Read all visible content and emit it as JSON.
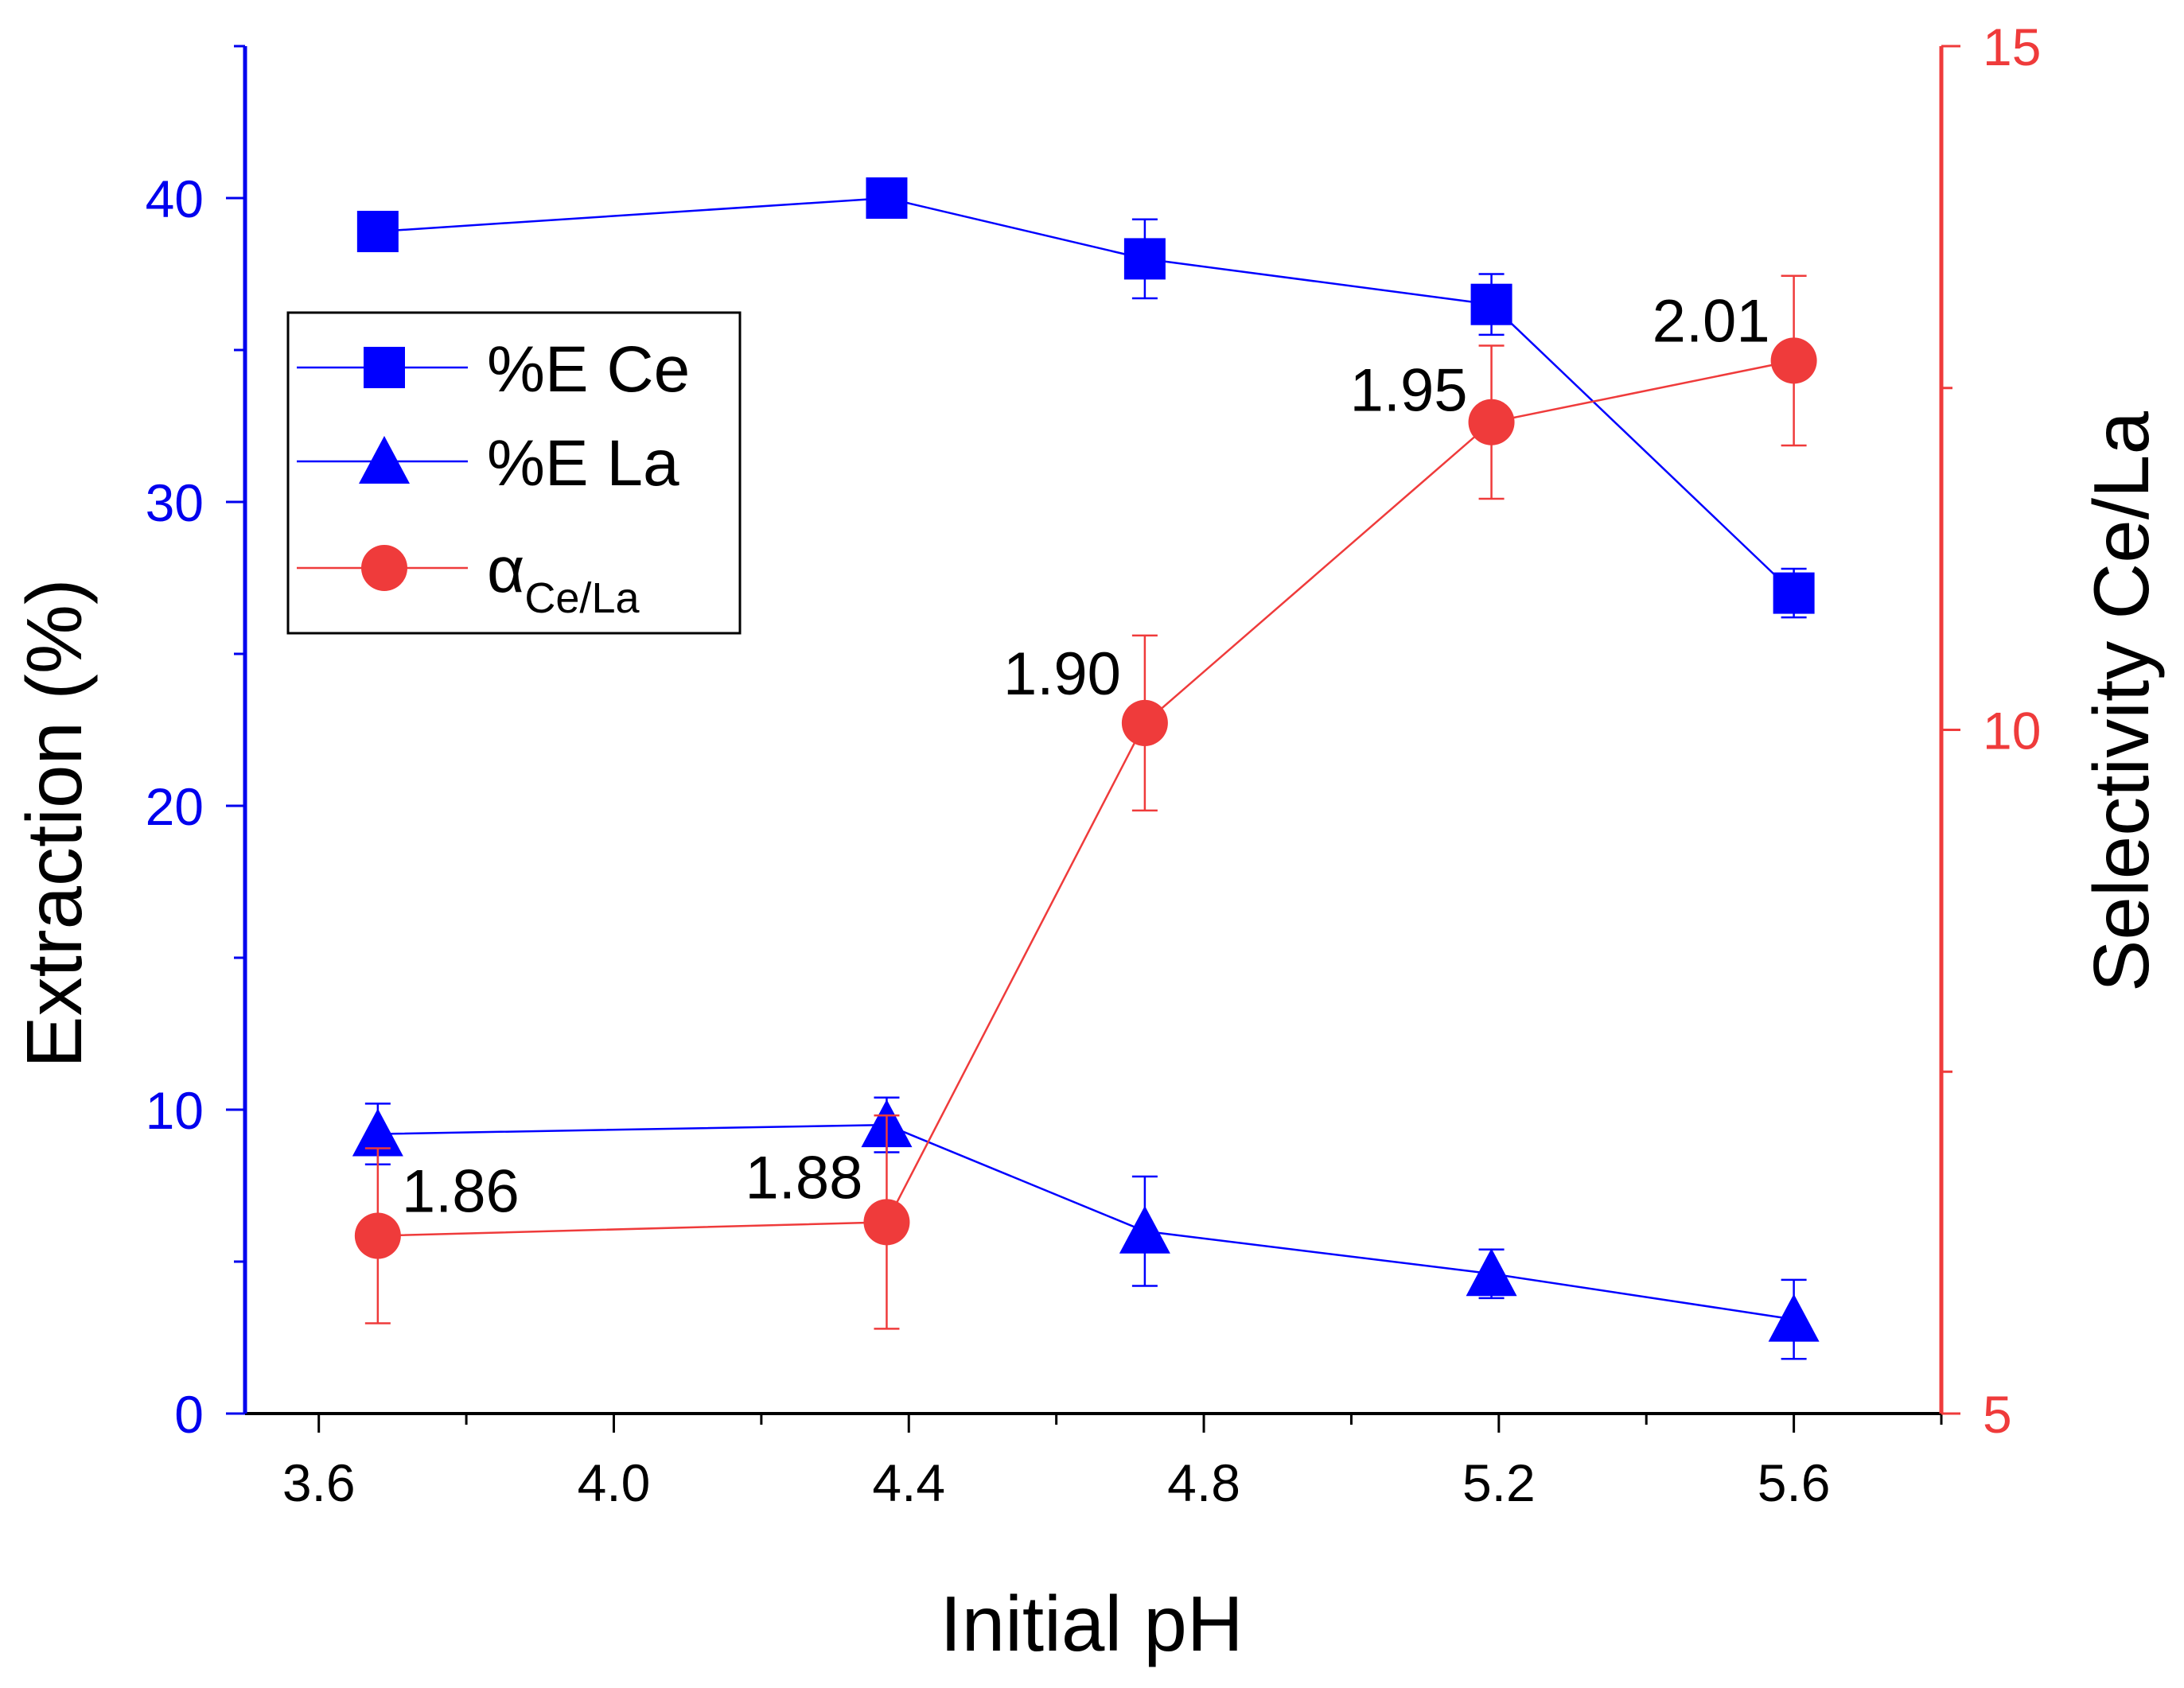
{
  "chart_data": {
    "type": "line",
    "xlabel": "Initial pH",
    "ylabel_left": "Extraction (%)",
    "ylabel_right": "Selectivity Ce/La",
    "xlim": [
      3.5,
      5.8
    ],
    "ylim_left": [
      0,
      45
    ],
    "ylim_right": [
      5,
      15
    ],
    "x_ticks": [
      3.6,
      4.0,
      4.4,
      4.8,
      5.2,
      5.6
    ],
    "x_tick_labels": [
      "3.6",
      "4.0",
      "4.4",
      "4.8",
      "5.2",
      "5.6"
    ],
    "y_left_ticks": [
      0,
      10,
      20,
      30,
      40
    ],
    "y_left_tick_labels": [
      "0",
      "10",
      "20",
      "30",
      "40"
    ],
    "y_right_ticks": [
      5,
      10,
      15
    ],
    "y_right_tick_labels": [
      "5",
      "10",
      "15"
    ],
    "colors": {
      "left_axis": "#0000ee",
      "right_axis": "#ef3b3b",
      "series_blue": "#0000ff",
      "series_red": "#ef3b3b"
    },
    "series": [
      {
        "name": "%E Ce",
        "axis": "left",
        "marker": "square",
        "x": [
          3.68,
          4.37,
          4.72,
          5.19,
          5.6
        ],
        "y": [
          38.9,
          40.0,
          38.0,
          36.5,
          27.0
        ],
        "err": [
          0,
          0,
          1.3,
          1.0,
          0.8
        ]
      },
      {
        "name": "%E La",
        "axis": "left",
        "marker": "triangle",
        "x": [
          3.68,
          4.37,
          4.72,
          5.19,
          5.6
        ],
        "y": [
          9.2,
          9.5,
          6.0,
          4.6,
          3.1
        ],
        "err": [
          1.0,
          0.9,
          1.8,
          0.8,
          1.3
        ]
      },
      {
        "name": "α",
        "subscript": "Ce/La",
        "axis": "right",
        "marker": "circle",
        "x": [
          3.68,
          4.37,
          4.72,
          5.19,
          5.6
        ],
        "y": [
          6.3,
          6.4,
          10.05,
          12.25,
          12.7
        ],
        "err": [
          0.64,
          0.78,
          0.64,
          0.56,
          0.62
        ]
      }
    ],
    "annotations": [
      {
        "text": "1.86",
        "x": 3.68,
        "y": 6.3
      },
      {
        "text": "1.88",
        "x": 4.37,
        "y": 6.4
      },
      {
        "text": "1.90",
        "x": 4.72,
        "y": 10.05
      },
      {
        "text": "1.95",
        "x": 5.19,
        "y": 12.25
      },
      {
        "text": "2.01",
        "x": 5.6,
        "y": 12.7
      }
    ],
    "legend_position": "upper-left"
  }
}
